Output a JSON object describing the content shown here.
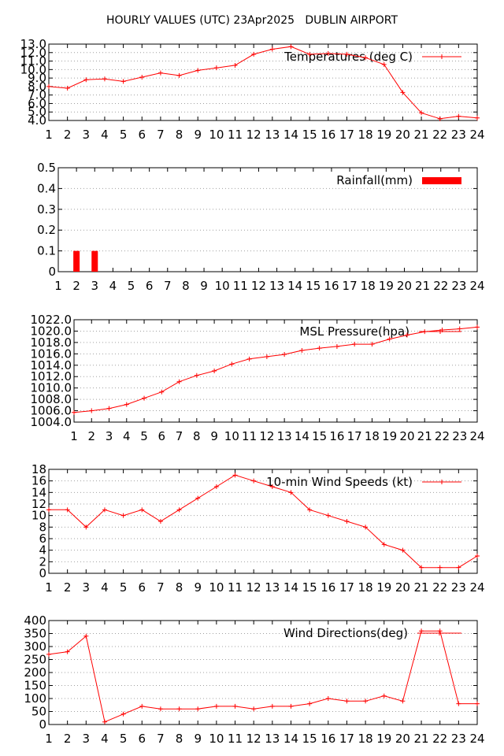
{
  "title": "HOURLY VALUES (UTC) 23Apr2025   DUBLIN AIRPORT",
  "colors": {
    "series": "#ff0000",
    "grid": "#a0a0a0",
    "axis": "#000000"
  },
  "chart_data": [
    {
      "type": "line",
      "legend": "Temperatures (deg C)",
      "legend_position": "top-right",
      "x": [
        1,
        2,
        3,
        4,
        5,
        6,
        7,
        8,
        9,
        10,
        11,
        12,
        13,
        14,
        15,
        16,
        17,
        18,
        19,
        20,
        21,
        22,
        23,
        24
      ],
      "x_ticks": [
        1,
        2,
        3,
        4,
        5,
        6,
        7,
        8,
        9,
        10,
        11,
        12,
        13,
        14,
        15,
        16,
        17,
        18,
        19,
        20,
        21,
        22,
        23,
        24
      ],
      "values": [
        8.0,
        7.8,
        8.8,
        8.9,
        8.6,
        9.1,
        9.6,
        9.3,
        9.9,
        10.2,
        10.5,
        11.8,
        12.4,
        12.7,
        11.8,
        11.9,
        11.8,
        11.4,
        10.6,
        7.3,
        4.9,
        4.2,
        4.5,
        4.3
      ],
      "ylim": [
        4.0,
        13.0
      ],
      "y_ticks": [
        "4.0",
        "5.0",
        "6.0",
        "7.0",
        "8.0",
        "9.0",
        "10.0",
        "11.0",
        "12.0",
        "13.0"
      ],
      "y_tick_values": [
        4,
        5,
        6,
        7,
        8,
        9,
        10,
        11,
        12,
        13
      ],
      "grid": true
    },
    {
      "type": "bar",
      "legend": "Rainfall(mm)",
      "legend_position": "top-right",
      "x": [
        1,
        2,
        3,
        4,
        5,
        6,
        7,
        8,
        9,
        10,
        11,
        12,
        13,
        14,
        15,
        16,
        17,
        18,
        19,
        20,
        21,
        22,
        23,
        24
      ],
      "x_ticks": [
        1,
        2,
        3,
        4,
        5,
        6,
        7,
        8,
        9,
        10,
        11,
        12,
        13,
        14,
        15,
        16,
        17,
        18,
        19,
        20,
        21,
        22,
        23,
        24
      ],
      "values": [
        0,
        0.1,
        0.1,
        0,
        0,
        0,
        0,
        0,
        0,
        0,
        0,
        0,
        0,
        0,
        0,
        0,
        0,
        0,
        0,
        0,
        0,
        0,
        0,
        0
      ],
      "ylim": [
        0,
        0.5
      ],
      "y_ticks": [
        "0",
        "0.1",
        "0.2",
        "0.3",
        "0.4",
        "0.5"
      ],
      "y_tick_values": [
        0,
        0.1,
        0.2,
        0.3,
        0.4,
        0.5
      ],
      "grid": true
    },
    {
      "type": "line",
      "legend": "MSL Pressure(hpa)",
      "legend_position": "top-right",
      "x": [
        1,
        2,
        3,
        4,
        5,
        6,
        7,
        8,
        9,
        10,
        11,
        12,
        13,
        14,
        15,
        16,
        17,
        18,
        19,
        20,
        21,
        22,
        23,
        24
      ],
      "x_ticks": [
        1,
        2,
        3,
        4,
        5,
        6,
        7,
        8,
        9,
        10,
        11,
        12,
        13,
        14,
        15,
        16,
        17,
        18,
        19,
        20,
        21,
        22,
        23,
        24
      ],
      "values": [
        1005.7,
        1006.0,
        1006.4,
        1007.1,
        1008.2,
        1009.3,
        1011.1,
        1012.2,
        1013.0,
        1014.2,
        1015.1,
        1015.5,
        1015.9,
        1016.6,
        1017.0,
        1017.3,
        1017.7,
        1017.7,
        1018.6,
        1019.3,
        1019.9,
        1020.2,
        1020.4,
        1020.7
      ],
      "ylim": [
        1004.0,
        1022.0
      ],
      "y_ticks": [
        "1004.0",
        "1006.0",
        "1008.0",
        "1010.0",
        "1012.0",
        "1014.0",
        "1016.0",
        "1018.0",
        "1020.0",
        "1022.0"
      ],
      "y_tick_values": [
        1004,
        1006,
        1008,
        1010,
        1012,
        1014,
        1016,
        1018,
        1020,
        1022
      ],
      "grid": true
    },
    {
      "type": "line",
      "legend": "10-min Wind Speeds (kt)",
      "legend_position": "top-right",
      "x": [
        1,
        2,
        3,
        4,
        5,
        6,
        7,
        8,
        9,
        10,
        11,
        12,
        13,
        14,
        15,
        16,
        17,
        18,
        19,
        20,
        21,
        22,
        23,
        24
      ],
      "x_ticks": [
        1,
        2,
        3,
        4,
        5,
        6,
        7,
        8,
        9,
        10,
        11,
        12,
        13,
        14,
        15,
        16,
        17,
        18,
        19,
        20,
        21,
        22,
        23,
        24
      ],
      "values": [
        11,
        11,
        8,
        11,
        10,
        11,
        9,
        11,
        13,
        15,
        17,
        16,
        15,
        14,
        11,
        10,
        9,
        8,
        5,
        4,
        1,
        1,
        1,
        3
      ],
      "ylim": [
        0,
        18
      ],
      "y_ticks": [
        "0",
        "2",
        "4",
        "6",
        "8",
        "10",
        "12",
        "14",
        "16",
        "18"
      ],
      "y_tick_values": [
        0,
        2,
        4,
        6,
        8,
        10,
        12,
        14,
        16,
        18
      ],
      "grid": true
    },
    {
      "type": "line",
      "legend": "Wind Directions(deg)",
      "legend_position": "top-right",
      "x": [
        1,
        2,
        3,
        4,
        5,
        6,
        7,
        8,
        9,
        10,
        11,
        12,
        13,
        14,
        15,
        16,
        17,
        18,
        19,
        20,
        21,
        22,
        23,
        24
      ],
      "x_ticks": [
        1,
        2,
        3,
        4,
        5,
        6,
        7,
        8,
        9,
        10,
        11,
        12,
        13,
        14,
        15,
        16,
        17,
        18,
        19,
        20,
        21,
        22,
        23,
        24
      ],
      "values": [
        270,
        280,
        340,
        10,
        40,
        70,
        60,
        60,
        60,
        70,
        70,
        60,
        70,
        70,
        80,
        100,
        90,
        90,
        110,
        90,
        360,
        360,
        80,
        80
      ],
      "ylim": [
        0,
        400
      ],
      "y_ticks": [
        "0",
        "50",
        "100",
        "150",
        "200",
        "250",
        "300",
        "350",
        "400"
      ],
      "y_tick_values": [
        0,
        50,
        100,
        150,
        200,
        250,
        300,
        350,
        400
      ],
      "grid": true
    }
  ]
}
